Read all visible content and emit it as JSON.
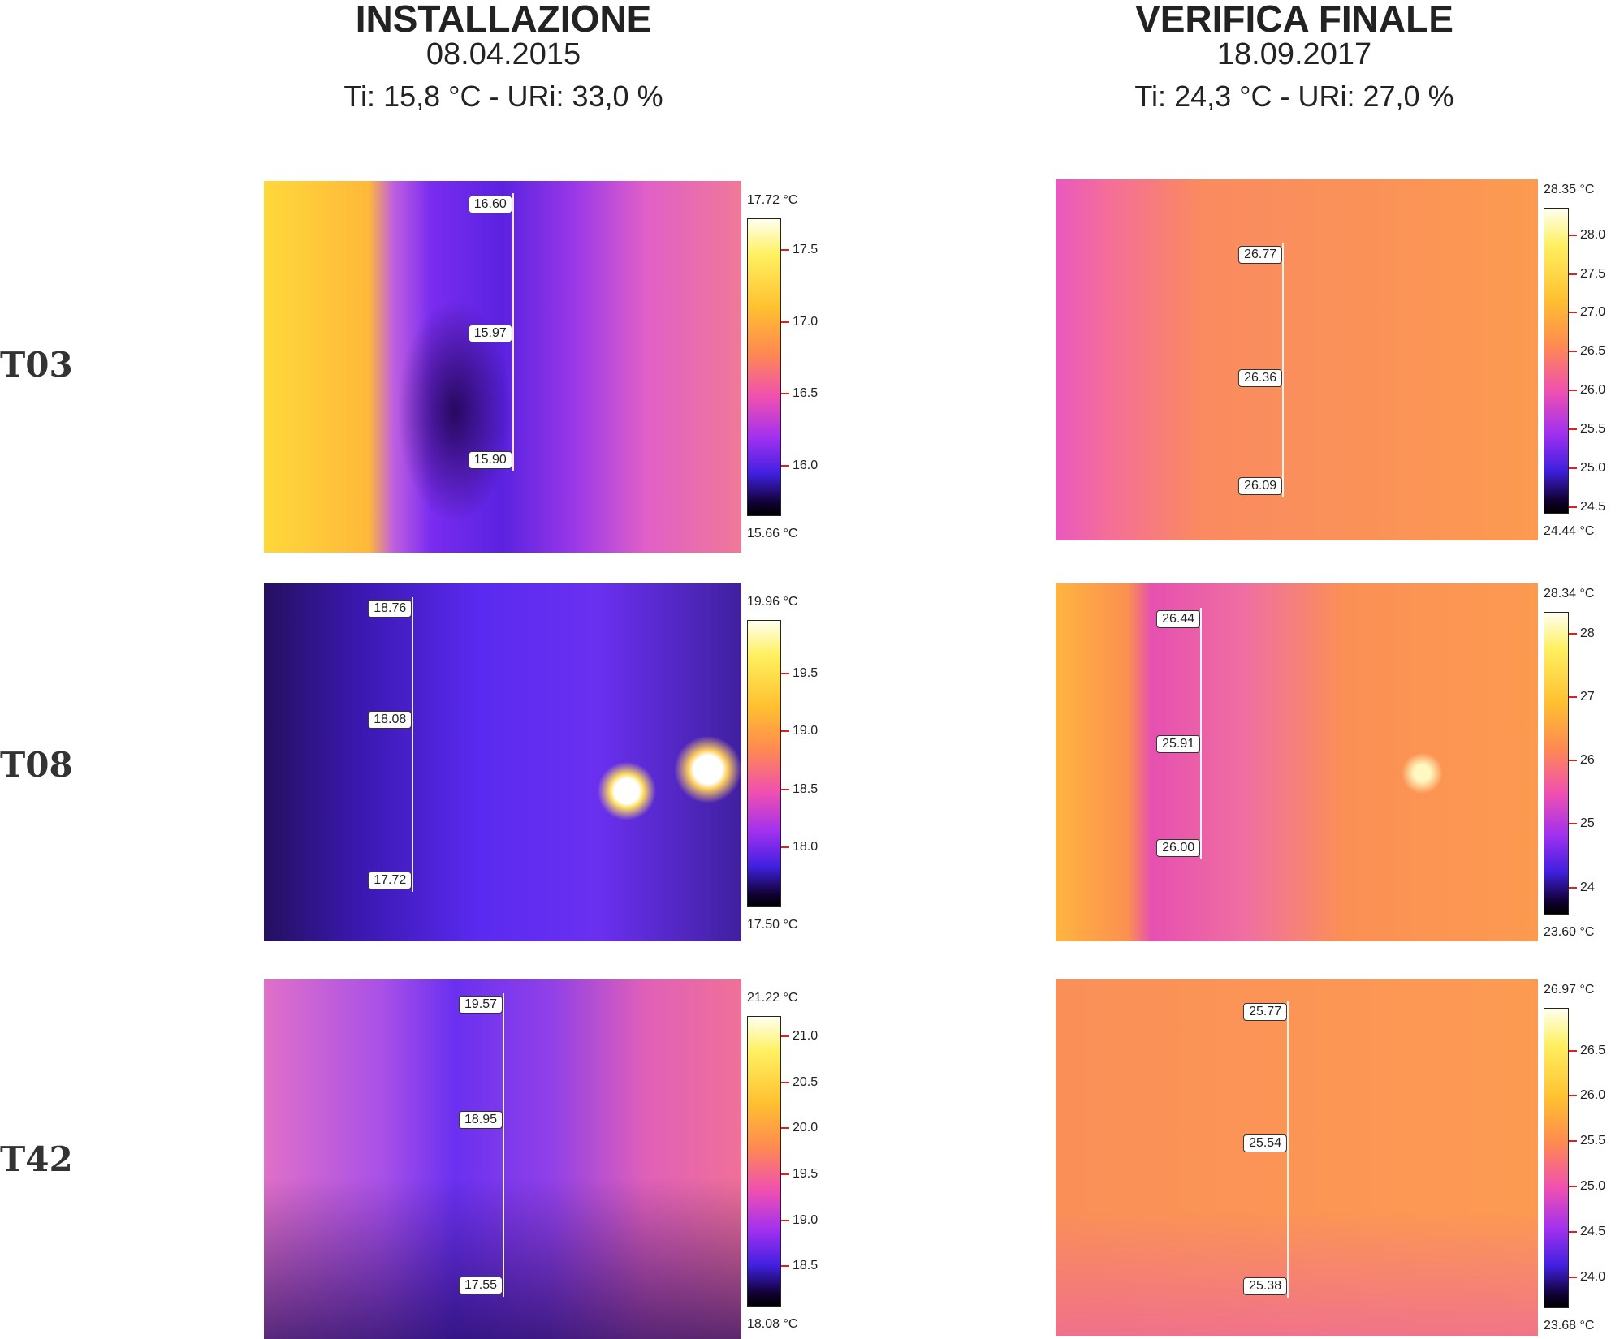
{
  "columns": [
    {
      "title": "INSTALLAZIONE",
      "date": "08.04.2015",
      "conditions": "Ti: 15,8 °C - URi: 33,0 %"
    },
    {
      "title": "VERIFICA FINALE",
      "date": "18.09.2017",
      "conditions": "Ti: 24,3 °C - URi: 27,0 %"
    }
  ],
  "rows": [
    {
      "label": "T03",
      "panels": [
        {
          "spots": [
            "16.60",
            "15.97",
            "15.90"
          ],
          "scale": {
            "max": {
              "value": 17.72,
              "label": "17.72 °C"
            },
            "min": {
              "value": 15.66,
              "label": "15.66 °C"
            },
            "ticks": [
              17.5,
              {
                "value": 17,
                "label": "17.0"
              },
              16.5,
              {
                "value": 16,
                "label": "16.0"
              }
            ]
          }
        },
        {
          "spots": [
            "26.77",
            "26.36",
            "26.09"
          ],
          "scale": {
            "max": {
              "value": 28.35,
              "label": "28.35 °C"
            },
            "min": {
              "value": 24.44,
              "label": "24.44 °C"
            },
            "ticks": [
              {
                "value": 28,
                "label": "28.0"
              },
              27.5,
              {
                "value": 27,
                "label": "27.0"
              },
              26.5,
              {
                "value": 26,
                "label": "26.0"
              },
              25.5,
              {
                "value": 25,
                "label": "25.0"
              },
              24.5
            ]
          }
        }
      ]
    },
    {
      "label": "T08",
      "panels": [
        {
          "spots": [
            "18.76",
            "18.08",
            "17.72"
          ],
          "scale": {
            "max": {
              "value": 19.96,
              "label": "19.96 °C"
            },
            "min": {
              "value": 17.5,
              "label": "17.50 °C"
            },
            "ticks": [
              19.5,
              {
                "value": 19,
                "label": "19.0"
              },
              18.5,
              {
                "value": 18,
                "label": "18.0"
              }
            ]
          }
        },
        {
          "spots": [
            "26.44",
            "25.91",
            "26.00"
          ],
          "scale": {
            "max": {
              "value": 28.34,
              "label": "28.34 °C"
            },
            "min": {
              "value": 23.6,
              "label": "23.60 °C"
            },
            "ticks": [
              28,
              27,
              26,
              25,
              24
            ]
          }
        }
      ]
    },
    {
      "label": "T42",
      "panels": [
        {
          "spots": [
            "19.57",
            "18.95",
            "17.55"
          ],
          "scale": {
            "max": {
              "value": 21.22,
              "label": "21.22 °C"
            },
            "min": {
              "value": 18.08,
              "label": "18.08 °C"
            },
            "ticks": [
              {
                "value": 21,
                "label": "21.0"
              },
              20.5,
              {
                "value": 20,
                "label": "20.0"
              },
              19.5,
              {
                "value": 19,
                "label": "19.0"
              },
              18.5
            ]
          }
        },
        {
          "spots": [
            "25.77",
            "25.54",
            "25.38"
          ],
          "scale": {
            "max": {
              "value": 26.97,
              "label": "26.97 °C"
            },
            "min": {
              "value": 23.68,
              "label": "23.68 °C"
            },
            "ticks": [
              26.5,
              {
                "value": 26,
                "label": "26.0"
              },
              25.5,
              {
                "value": 25,
                "label": "25.0"
              },
              24.5,
              {
                "value": 24,
                "label": "24.0"
              }
            ]
          }
        }
      ]
    }
  ]
}
